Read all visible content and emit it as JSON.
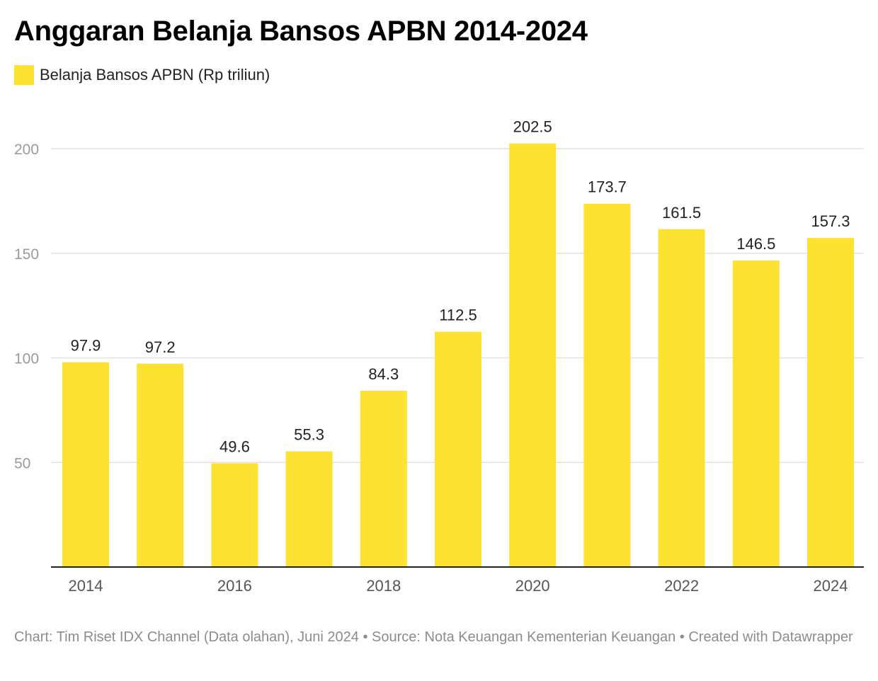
{
  "title": "Anggaran Belanja Bansos APBN 2014-2024",
  "footer": "Chart: Tim Riset IDX Channel (Data olahan), Juni 2024 • Source: Nota Keuangan Kementerian Keuangan • Created with Datawrapper",
  "chart_data": {
    "type": "bar",
    "title": "Anggaran Belanja Bansos APBN 2014-2024",
    "xlabel": "",
    "ylabel": "",
    "ylim": [
      0,
      200
    ],
    "yticks": [
      50,
      100,
      150,
      200
    ],
    "categories": [
      "2014",
      "2015",
      "2016",
      "2017",
      "2018",
      "2019",
      "2020",
      "2021",
      "2022",
      "2023",
      "2024"
    ],
    "xtick_labels": [
      "2014",
      "",
      "2016",
      "",
      "2018",
      "",
      "2020",
      "",
      "2022",
      "",
      "2024"
    ],
    "series": [
      {
        "name": "Belanja Bansos APBN (Rp triliun)",
        "color": "#fde232",
        "values": [
          97.9,
          97.2,
          49.6,
          55.3,
          84.3,
          112.5,
          202.5,
          173.7,
          161.5,
          146.5,
          157.3
        ],
        "value_labels": [
          "97.9",
          "97.2",
          "49.6",
          "55.3",
          "84.3",
          "112.5",
          "202.5",
          "173.7",
          "161.5",
          "146.5",
          "157.3"
        ]
      }
    ],
    "grid": true,
    "legend_position": "top-left"
  }
}
